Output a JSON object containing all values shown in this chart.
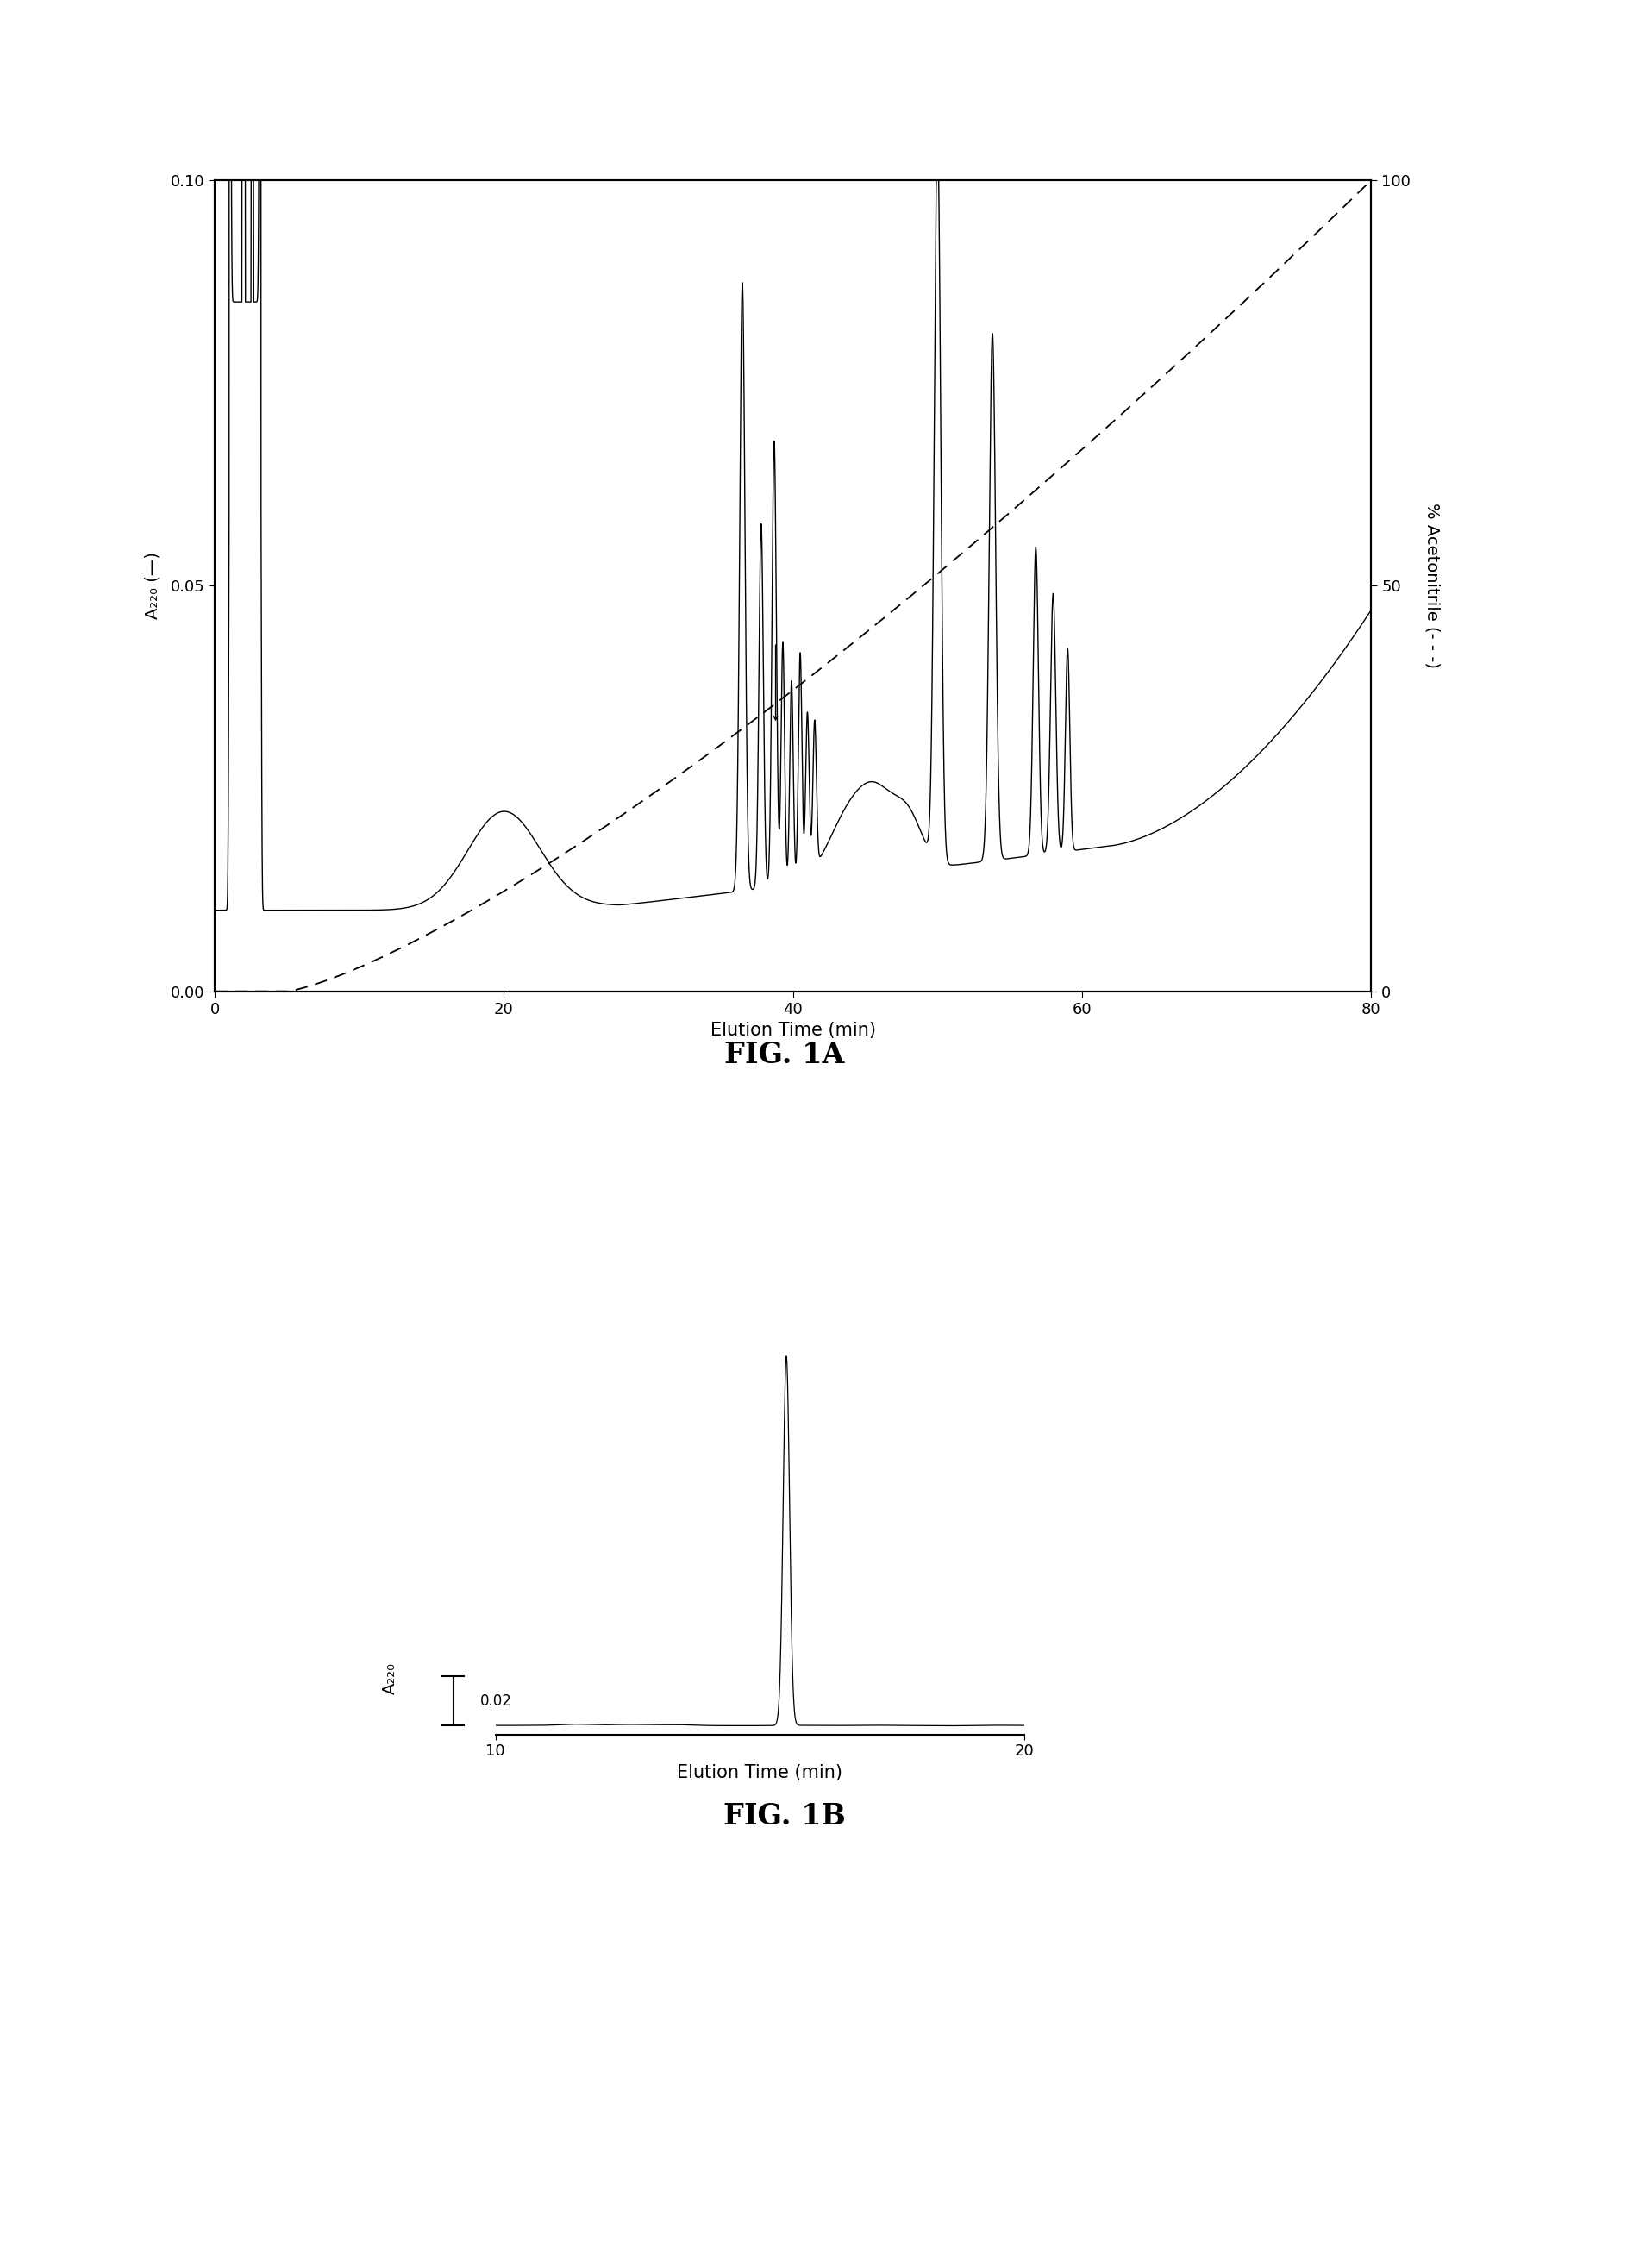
{
  "fig1a": {
    "title": "FIG. 1A",
    "xlabel": "Elution Time (min)",
    "ylabel_left": "A₂₂₀ (—)",
    "ylabel_right": "% Acetonitrile (- - -)",
    "xlim": [
      0,
      80
    ],
    "ylim_left": [
      0.0,
      0.1
    ],
    "ylim_right": [
      0,
      100
    ],
    "yticks_left": [
      0.0,
      0.05,
      0.1
    ],
    "yticks_right": [
      0,
      50,
      100
    ],
    "xticks": [
      0,
      20,
      40,
      60,
      80
    ]
  },
  "fig1b": {
    "title": "FIG. 1B",
    "xlabel": "Elution Time (min)",
    "ylabel": "A₂₂₀",
    "scale_bar_value": 0.02,
    "scale_bar_label": "0.02",
    "xlim": [
      10,
      20
    ],
    "xticks": [
      10,
      20
    ],
    "peak_time": 15.5
  },
  "background_color": "#ffffff",
  "line_color": "#000000"
}
